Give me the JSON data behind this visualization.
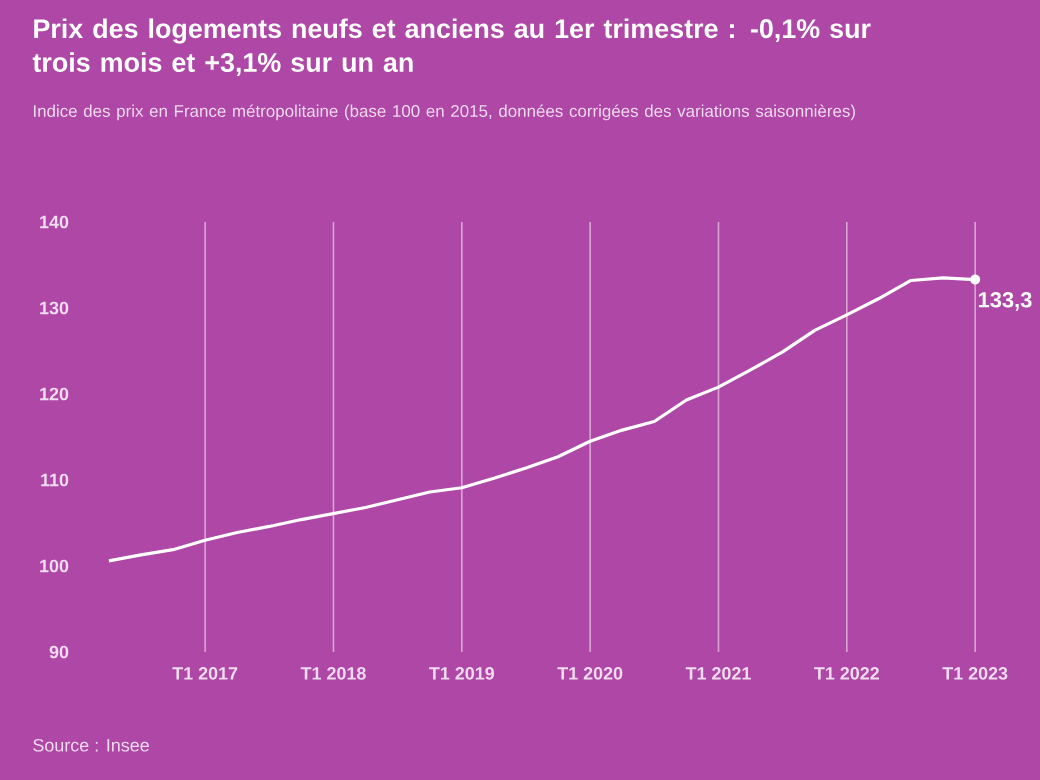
{
  "chart_data": {
    "type": "line",
    "title": "Prix des logements neufs et anciens au 1er trimestre : -0,1% sur trois mois et +3,1% sur un an",
    "subtitle": "Indice des prix en France métropolitaine (base 100 en 2015, données corrigées des variations saisonnières)",
    "categories": [
      null,
      null,
      null,
      "T1 2017",
      null,
      null,
      null,
      "T1 2018",
      null,
      null,
      null,
      "T1 2019",
      null,
      null,
      null,
      "T1 2020",
      null,
      null,
      null,
      "T1 2021",
      null,
      null,
      null,
      "T1 2022",
      null,
      null,
      null,
      "T1 2023"
    ],
    "series": [
      {
        "color": "#ffffff",
        "values": [
          100.6,
          101.3,
          101.9,
          103.0,
          103.9,
          104.6,
          105.4,
          106.1,
          106.8,
          107.7,
          108.6,
          109.1,
          110.2,
          111.4,
          112.7,
          114.5,
          115.8,
          116.8,
          119.3,
          120.8,
          122.8,
          124.9,
          127.4,
          129.2,
          131.1,
          133.2,
          133.5,
          133.3
        ]
      }
    ],
    "ylim": [
      90,
      140
    ],
    "yticks": [
      90,
      100,
      110,
      120,
      130,
      140
    ],
    "grid": "x",
    "annotations": [
      {
        "text": "133,3",
        "x": "T1 2023",
        "y": 133.3
      },
      "Source : Insee"
    ]
  }
}
